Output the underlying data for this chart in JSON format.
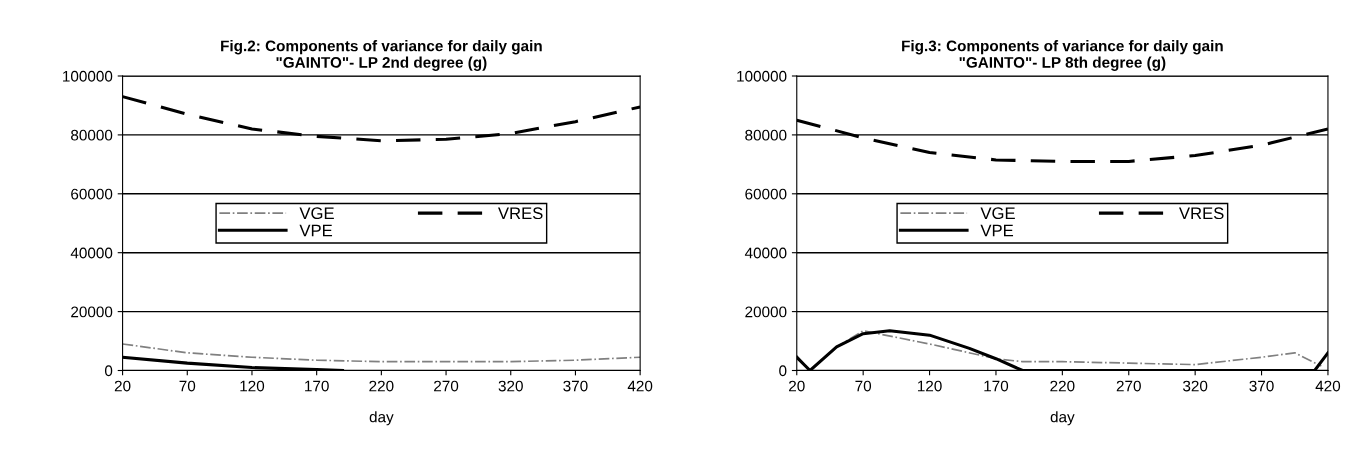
{
  "chart_data": [
    {
      "type": "line",
      "title": "Fig.2: Components of variance for daily gain\n\"GAINTO\"- LP 2nd degree (g)",
      "xlabel": "day",
      "xlim": [
        20,
        420
      ],
      "xticks": [
        20,
        70,
        120,
        170,
        220,
        270,
        320,
        370,
        420
      ],
      "ylim": [
        0,
        100000
      ],
      "yticks": [
        0,
        20000,
        40000,
        60000,
        80000,
        100000
      ],
      "grid": "y",
      "legend": "center",
      "series": [
        {
          "name": "VGE",
          "color": "#808080",
          "line_style": "dashdot",
          "x": [
            20,
            70,
            120,
            170,
            220,
            270,
            320,
            370,
            420
          ],
          "values": [
            9000,
            6000,
            4500,
            3500,
            3000,
            3000,
            3000,
            3500,
            4500
          ]
        },
        {
          "name": "VPE",
          "color": "#000000",
          "line_style": "solid",
          "x": [
            20,
            70,
            120,
            170,
            190
          ],
          "values": [
            4500,
            2500,
            1000,
            300,
            0
          ]
        },
        {
          "name": "VRES",
          "color": "#000000",
          "line_style": "dashed",
          "x": [
            20,
            70,
            120,
            170,
            220,
            270,
            320,
            370,
            420
          ],
          "values": [
            93000,
            87000,
            82000,
            79500,
            78000,
            78500,
            80500,
            84500,
            89500
          ]
        }
      ]
    },
    {
      "type": "line",
      "title": "Fig.3: Components of variance for daily gain\n\"GAINTO\"- LP 8th degree (g)",
      "xlabel": "day",
      "xlim": [
        20,
        420
      ],
      "xticks": [
        20,
        70,
        120,
        170,
        220,
        270,
        320,
        370,
        420
      ],
      "ylim": [
        0,
        100000
      ],
      "yticks": [
        0,
        20000,
        40000,
        60000,
        80000,
        100000
      ],
      "grid": "y",
      "legend": "center",
      "series": [
        {
          "name": "VGE",
          "color": "#808080",
          "line_style": "dashdot",
          "x": [
            20,
            30,
            50,
            70,
            120,
            170,
            190,
            220,
            270,
            320,
            370,
            395,
            415
          ],
          "values": [
            5000,
            0,
            8000,
            13500,
            9000,
            4000,
            3000,
            3000,
            2500,
            2000,
            4500,
            6000,
            1500
          ]
        },
        {
          "name": "VPE",
          "color": "#000000",
          "line_style": "solid",
          "x": [
            20,
            30,
            50,
            70,
            90,
            120,
            150,
            170,
            190,
            200,
            370,
            400,
            410,
            420
          ],
          "values": [
            4500,
            0,
            8000,
            12500,
            13500,
            12000,
            7500,
            4000,
            0,
            0,
            0,
            0,
            0,
            6000
          ]
        },
        {
          "name": "VRES",
          "color": "#000000",
          "line_style": "dashed",
          "x": [
            20,
            70,
            120,
            170,
            220,
            270,
            320,
            370,
            420
          ],
          "values": [
            85000,
            79000,
            74000,
            71500,
            71000,
            71000,
            73000,
            76500,
            82000
          ]
        }
      ]
    }
  ]
}
